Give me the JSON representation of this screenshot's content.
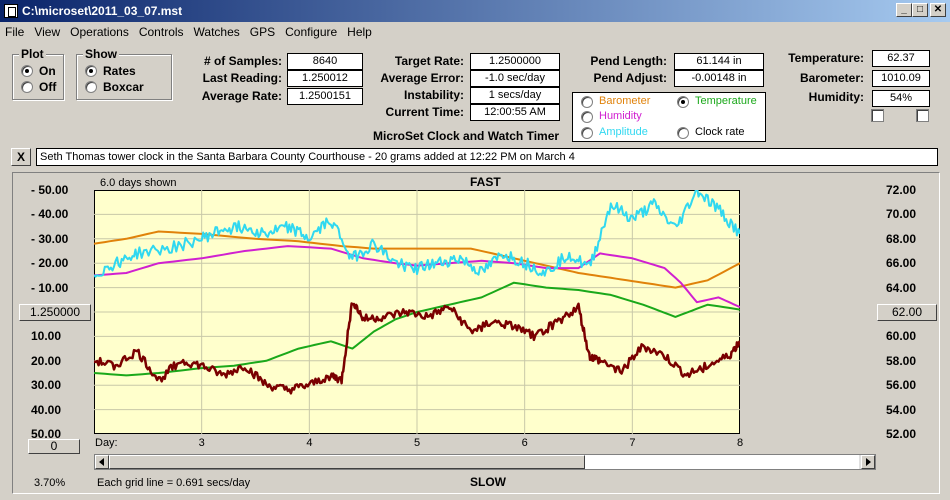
{
  "window": {
    "title": "C:\\microset\\2011_03_07.mst"
  },
  "menu": [
    "File",
    "View",
    "Operations",
    "Controls",
    "Watches",
    "GPS",
    "Configure",
    "Help"
  ],
  "plot_group": {
    "label": "Plot",
    "options": [
      "On",
      "Off"
    ],
    "selected": "On"
  },
  "show_group": {
    "label": "Show",
    "options": [
      "Rates",
      "Boxcar"
    ],
    "selected": "Rates"
  },
  "stats": {
    "samples_label": "# of Samples:",
    "samples": "8640",
    "last_label": "Last Reading:",
    "last": "1.250012",
    "avg_rate_label": "Average Rate:",
    "avg_rate": "1.2500151"
  },
  "target": {
    "target_label": "Target Rate:",
    "target": "1.2500000",
    "avg_err_label": "Average Error:",
    "avg_err": "-1.0 sec/day",
    "instab_label": "Instability:",
    "instab": "1 secs/day",
    "time_label": "Current Time:",
    "time": "12:00:55 AM"
  },
  "pendulum": {
    "length_label": "Pend Length:",
    "length": "61.144 in",
    "adjust_label": "Pend Adjust:",
    "adjust": "-0.00148 in"
  },
  "env": {
    "temp_label": "Temperature:",
    "temp": "62.37",
    "baro_label": "Barometer:",
    "baro": "1010.09",
    "hum_label": "Humidity:",
    "hum": "54%"
  },
  "series_select": {
    "barometer": "Barometer",
    "temperature": "Temperature",
    "humidity": "Humidity",
    "amplitude": "Amplitude",
    "clock_rate": "Clock rate",
    "selected": "Temperature"
  },
  "app_caption": "MicroSet Clock and Watch Timer",
  "note": "Seth Thomas tower clock in the Santa Barbara County Courthouse - 20 grams added at 12:22 PM on March 4",
  "close_button": "X",
  "chart_header": {
    "days_shown": "6.0 days shown",
    "top": "FAST",
    "bottom": "SLOW"
  },
  "center_rate_button": "1.250000",
  "right_center_button": "62.00",
  "offset_button": "0",
  "zoom": "3.70%",
  "grid_note": "Each grid line = 0.691 secs/day",
  "colors": {
    "plot_bg": "#ffffcc",
    "barometer": "#e0820a",
    "temperature": "#1aa81a",
    "humidity": "#d020d0",
    "amplitude": "#30d8f0",
    "clock_rate": "#7a0000"
  },
  "chart_data": {
    "type": "line",
    "x_label": "Day:",
    "x_ticks": [
      "3",
      "4",
      "5",
      "6",
      "7",
      "8"
    ],
    "xlim": [
      2,
      8
    ],
    "left_axis": {
      "ticks": [
        "50.00",
        "40.00",
        "30.00",
        "20.00",
        "10.00",
        "10.00",
        "20.00",
        "30.00",
        "40.00",
        "50.00"
      ],
      "ylim": [
        -50,
        50
      ],
      "center": "1.250000"
    },
    "right_axis": {
      "ticks": [
        "72.00",
        "70.00",
        "68.00",
        "66.00",
        "64.00",
        "62.00",
        "60.00",
        "58.00",
        "56.00",
        "54.00",
        "52.00"
      ],
      "ylim": [
        52,
        72
      ]
    },
    "series": [
      {
        "key": "barometer",
        "x": [
          2.0,
          2.3,
          2.6,
          3.0,
          3.5,
          3.9,
          4.3,
          4.6,
          5.0,
          5.5,
          5.9,
          6.2,
          6.5,
          6.8,
          7.1,
          7.4,
          7.7,
          8.0
        ],
        "y": [
          28,
          30,
          33,
          32,
          30,
          29,
          27,
          26,
          26,
          26,
          22,
          19,
          16,
          14,
          12,
          10,
          13,
          20
        ]
      },
      {
        "key": "humidity",
        "x": [
          2.0,
          2.3,
          2.6,
          3.0,
          3.4,
          3.8,
          4.2,
          4.5,
          4.8,
          5.0,
          5.3,
          5.6,
          5.9,
          6.2,
          6.5,
          6.7,
          7.0,
          7.3,
          7.45,
          7.6,
          7.8,
          8.0
        ],
        "y": [
          15,
          16,
          20,
          22,
          25,
          27,
          26,
          22,
          20,
          19,
          20,
          21,
          20,
          18,
          18,
          24,
          22,
          18,
          12,
          4,
          6,
          2
        ]
      },
      {
        "key": "temperature",
        "x": [
          2.0,
          2.3,
          2.6,
          3.0,
          3.3,
          3.6,
          3.9,
          4.2,
          4.4,
          4.6,
          4.8,
          5.0,
          5.3,
          5.6,
          5.9,
          6.2,
          6.5,
          6.8,
          7.1,
          7.4,
          7.7,
          8.0
        ],
        "y": [
          -25,
          -26,
          -25,
          -23,
          -22,
          -20,
          -15,
          -12,
          -15,
          -8,
          -3,
          0,
          3,
          6,
          12,
          10,
          9,
          7,
          3,
          -2,
          3,
          1
        ]
      },
      {
        "key": "amplitude",
        "x": [
          2.0,
          2.2,
          2.4,
          2.7,
          3.0,
          3.2,
          3.4,
          3.6,
          3.8,
          4.0,
          4.2,
          4.4,
          4.6,
          4.8,
          5.0,
          5.2,
          5.4,
          5.6,
          5.8,
          6.0,
          6.2,
          6.4,
          6.6,
          6.8,
          7.0,
          7.2,
          7.4,
          7.6,
          7.8,
          8.0
        ],
        "y": [
          15,
          20,
          24,
          26,
          30,
          34,
          35,
          32,
          35,
          30,
          38,
          22,
          28,
          20,
          18,
          20,
          22,
          16,
          24,
          20,
          16,
          24,
          18,
          44,
          38,
          44,
          34,
          50,
          42,
          32
        ]
      },
      {
        "key": "clock_rate",
        "x": [
          2.0,
          2.2,
          2.4,
          2.6,
          2.8,
          3.0,
          3.2,
          3.4,
          3.6,
          3.8,
          4.0,
          4.2,
          4.3,
          4.4,
          4.5,
          4.7,
          4.9,
          5.1,
          5.3,
          5.5,
          5.7,
          5.9,
          6.1,
          6.3,
          6.5,
          6.6,
          6.7,
          6.9,
          7.1,
          7.3,
          7.5,
          7.7,
          7.9,
          8.0
        ],
        "y": [
          -20,
          -22,
          -16,
          -28,
          -20,
          -22,
          -26,
          -22,
          -30,
          -32,
          -30,
          -26,
          -28,
          5,
          -3,
          -2,
          0,
          -2,
          2,
          -8,
          -4,
          -6,
          -10,
          -4,
          2,
          -18,
          -20,
          -24,
          -14,
          -18,
          -26,
          -22,
          -18,
          -12
        ]
      }
    ]
  }
}
